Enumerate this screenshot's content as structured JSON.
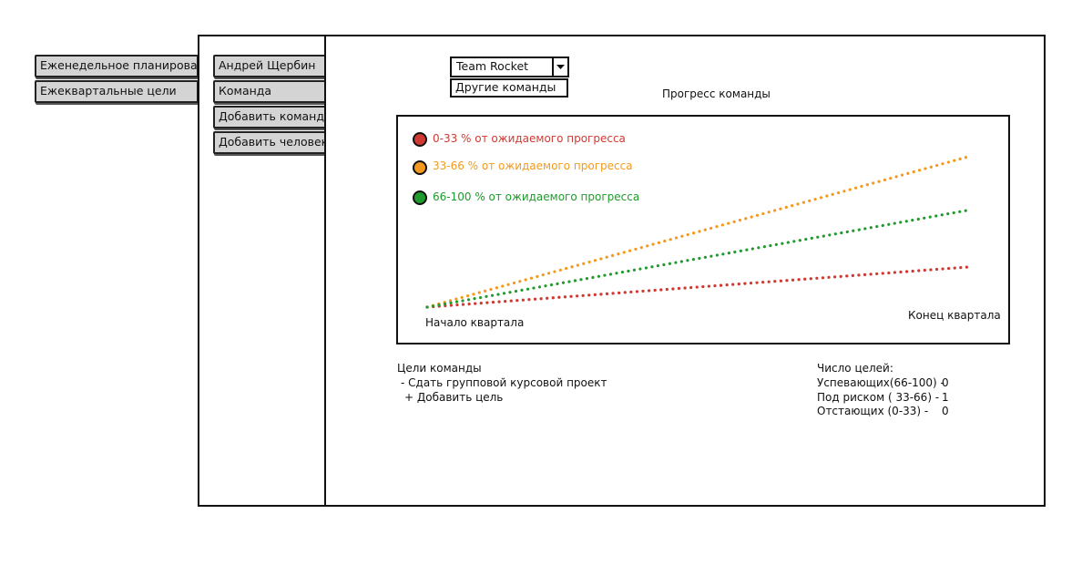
{
  "left_tabs": [
    {
      "label": "Еженедельное планирование"
    },
    {
      "label": "Ежеквартальные цели"
    }
  ],
  "sub_tabs": [
    {
      "label": "Андрей Щербин"
    },
    {
      "label": "Команда"
    },
    {
      "label": "Добавить команду"
    },
    {
      "label": "Добавить человека"
    }
  ],
  "team_select": {
    "selected": "Team Rocket",
    "options": [
      "Другие команды"
    ],
    "arrow_icon": "triangle-down-icon"
  },
  "chart_data": {
    "type": "line",
    "title": "Прогресс команды",
    "xlabel": "",
    "ylabel": "",
    "x_start_label": "Начало квартала",
    "x_end_label": "Конец квартала",
    "x": [
      0,
      1
    ],
    "ylim": [
      0,
      100
    ],
    "series": [
      {
        "name": "0-33 % от ожидаемого прогресса",
        "color": "#d03a32",
        "values": [
          0,
          24
        ]
      },
      {
        "name": "33-66 % от ожидаемого прогресса",
        "color": "#f39a1e",
        "values": [
          0,
          90
        ]
      },
      {
        "name": "66-100 % от ожидаемого прогресса",
        "color": "#1f9a2c",
        "values": [
          0,
          58
        ]
      }
    ],
    "legend_position": "top-left",
    "grid": false
  },
  "goals": {
    "heading": "Цели команды",
    "items": [
      "- Сдать групповой курсовой проект"
    ],
    "add_label": "+ Добавить цель"
  },
  "goal_counts": {
    "heading": "Число целей:",
    "rows": [
      {
        "label": "Успевающих(66-100) -",
        "value": "0"
      },
      {
        "label": "Под риском ( 33-66) -",
        "value": "1"
      },
      {
        "label": "Отстающих (0-33) -",
        "value": "0"
      }
    ]
  }
}
